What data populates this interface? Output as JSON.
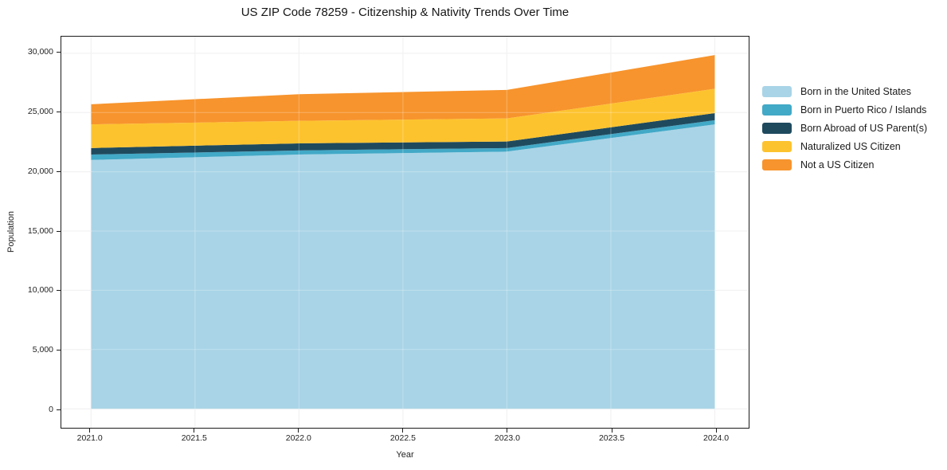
{
  "chart_data": {
    "type": "area",
    "stacked": true,
    "title": "US ZIP Code 78259 - Citizenship & Nativity Trends Over Time",
    "xlabel": "Year",
    "ylabel": "Population",
    "x": [
      2021,
      2022,
      2023,
      2024
    ],
    "series": [
      {
        "name": "Born in the United States",
        "color": "#a9d4e7",
        "values": [
          21000,
          21450,
          21700,
          24000
        ]
      },
      {
        "name": "Born in Puerto Rico / Islands",
        "color": "#42a9c7",
        "values": [
          450,
          350,
          300,
          350
        ]
      },
      {
        "name": "Born Abroad of US Parent(s)",
        "color": "#1f4a5e",
        "values": [
          550,
          600,
          550,
          600
        ]
      },
      {
        "name": "Naturalized US Citizen",
        "color": "#fdc32f",
        "values": [
          2000,
          1900,
          1950,
          2050
        ]
      },
      {
        "name": "Not a US Citizen",
        "color": "#f7942d",
        "values": [
          1700,
          2250,
          2400,
          2850
        ]
      }
    ],
    "stacked_totals": [
      25700,
      26550,
      26900,
      29850
    ],
    "xticks": [
      2021.0,
      2021.5,
      2022.0,
      2022.5,
      2023.0,
      2023.5,
      2024.0
    ],
    "xtick_labels": [
      "2021.0",
      "2021.5",
      "2022.0",
      "2022.5",
      "2023.0",
      "2023.5",
      "2024.0"
    ],
    "yticks": [
      0,
      5000,
      10000,
      15000,
      20000,
      25000,
      30000
    ],
    "ytick_labels": [
      "0",
      "5,000",
      "10,000",
      "15,000",
      "20,000",
      "25,000",
      "30,000"
    ],
    "xlim": [
      2020.86,
      2024.16
    ],
    "ylim": [
      -1600,
      31400
    ],
    "grid": true,
    "legend_position": "right-outside"
  }
}
